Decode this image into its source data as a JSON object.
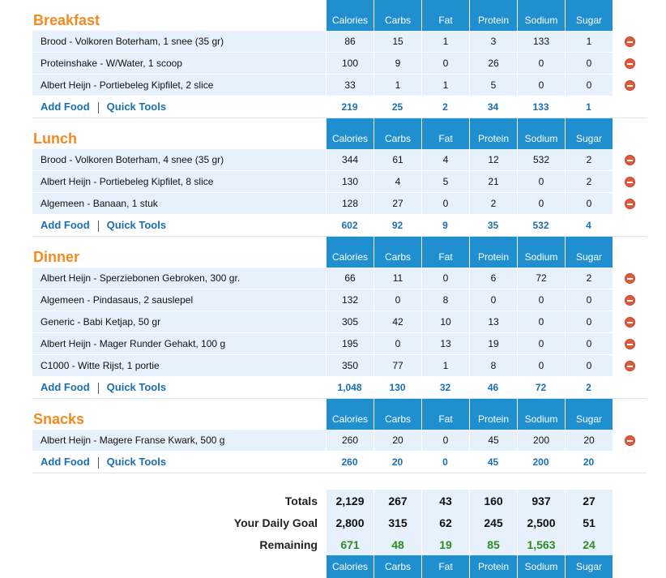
{
  "columns": [
    "Calories",
    "Carbs",
    "Fat",
    "Protein",
    "Sodium",
    "Sugar"
  ],
  "meals": [
    {
      "name": "Breakfast",
      "foods": [
        {
          "name": "Brood - Volkoren Boterham, 1 snee (35 gr)",
          "values": [
            "86",
            "15",
            "1",
            "3",
            "133",
            "1"
          ]
        },
        {
          "name": "Proteinshake - W/Water, 1 scoop",
          "values": [
            "100",
            "9",
            "0",
            "26",
            "0",
            "0"
          ]
        },
        {
          "name": "Albert Heijn - Portiebeleg Kipfilet, 2 slice",
          "values": [
            "33",
            "1",
            "1",
            "5",
            "0",
            "0"
          ]
        }
      ],
      "totals": [
        "219",
        "25",
        "2",
        "34",
        "133",
        "1"
      ]
    },
    {
      "name": "Lunch",
      "foods": [
        {
          "name": "Brood - Volkoren Boterham, 4 snee (35 gr)",
          "values": [
            "344",
            "61",
            "4",
            "12",
            "532",
            "2"
          ]
        },
        {
          "name": "Albert Heijn - Portiebeleg Kipfilet, 8 slice",
          "values": [
            "130",
            "4",
            "5",
            "21",
            "0",
            "2"
          ]
        },
        {
          "name": "Algemeen - Banaan, 1 stuk",
          "values": [
            "128",
            "27",
            "0",
            "2",
            "0",
            "0"
          ]
        }
      ],
      "totals": [
        "602",
        "92",
        "9",
        "35",
        "532",
        "4"
      ]
    },
    {
      "name": "Dinner",
      "foods": [
        {
          "name": "Albert Heijn - Sperziebonen Gebroken, 300 gr.",
          "values": [
            "66",
            "11",
            "0",
            "6",
            "72",
            "2"
          ]
        },
        {
          "name": "Algemeen - Pindasaus, 2 sauslepel",
          "values": [
            "132",
            "0",
            "8",
            "0",
            "0",
            "0"
          ]
        },
        {
          "name": "Generic - Babi Ketjap, 50 gr",
          "values": [
            "305",
            "42",
            "10",
            "13",
            "0",
            "0"
          ]
        },
        {
          "name": "Albert Heijn - Mager Runder Gehakt, 100 g",
          "values": [
            "195",
            "0",
            "13",
            "19",
            "0",
            "0"
          ]
        },
        {
          "name": "C1000 - Witte Rijst, 1 portie",
          "values": [
            "350",
            "77",
            "1",
            "8",
            "0",
            "0"
          ]
        }
      ],
      "totals": [
        "1,048",
        "130",
        "32",
        "46",
        "72",
        "2"
      ]
    },
    {
      "name": "Snacks",
      "foods": [
        {
          "name": "Albert Heijn - Magere Franse Kwark, 500 g",
          "values": [
            "260",
            "20",
            "0",
            "45",
            "200",
            "20"
          ]
        }
      ],
      "totals": [
        "260",
        "20",
        "0",
        "45",
        "200",
        "20"
      ]
    }
  ],
  "actions": {
    "add_food": "Add Food",
    "quick_tools": "Quick Tools"
  },
  "summary": {
    "totals": {
      "label": "Totals",
      "values": [
        "2,129",
        "267",
        "43",
        "160",
        "937",
        "27"
      ]
    },
    "goal": {
      "label": "Your Daily Goal",
      "values": [
        "2,800",
        "315",
        "62",
        "245",
        "2,500",
        "51"
      ]
    },
    "remaining": {
      "label": "Remaining",
      "values": [
        "671",
        "48",
        "19",
        "85",
        "1,563",
        "24"
      ]
    }
  },
  "colors": {
    "header_blue": "#1f8fd0",
    "meal_orange": "#f5891f",
    "link_blue": "#1a6fb0",
    "remaining_green": "#2e8b22",
    "row_bg": "#e6f1fb",
    "delete_red": "#e05b3c"
  },
  "icons": {
    "delete": "delete-icon"
  }
}
